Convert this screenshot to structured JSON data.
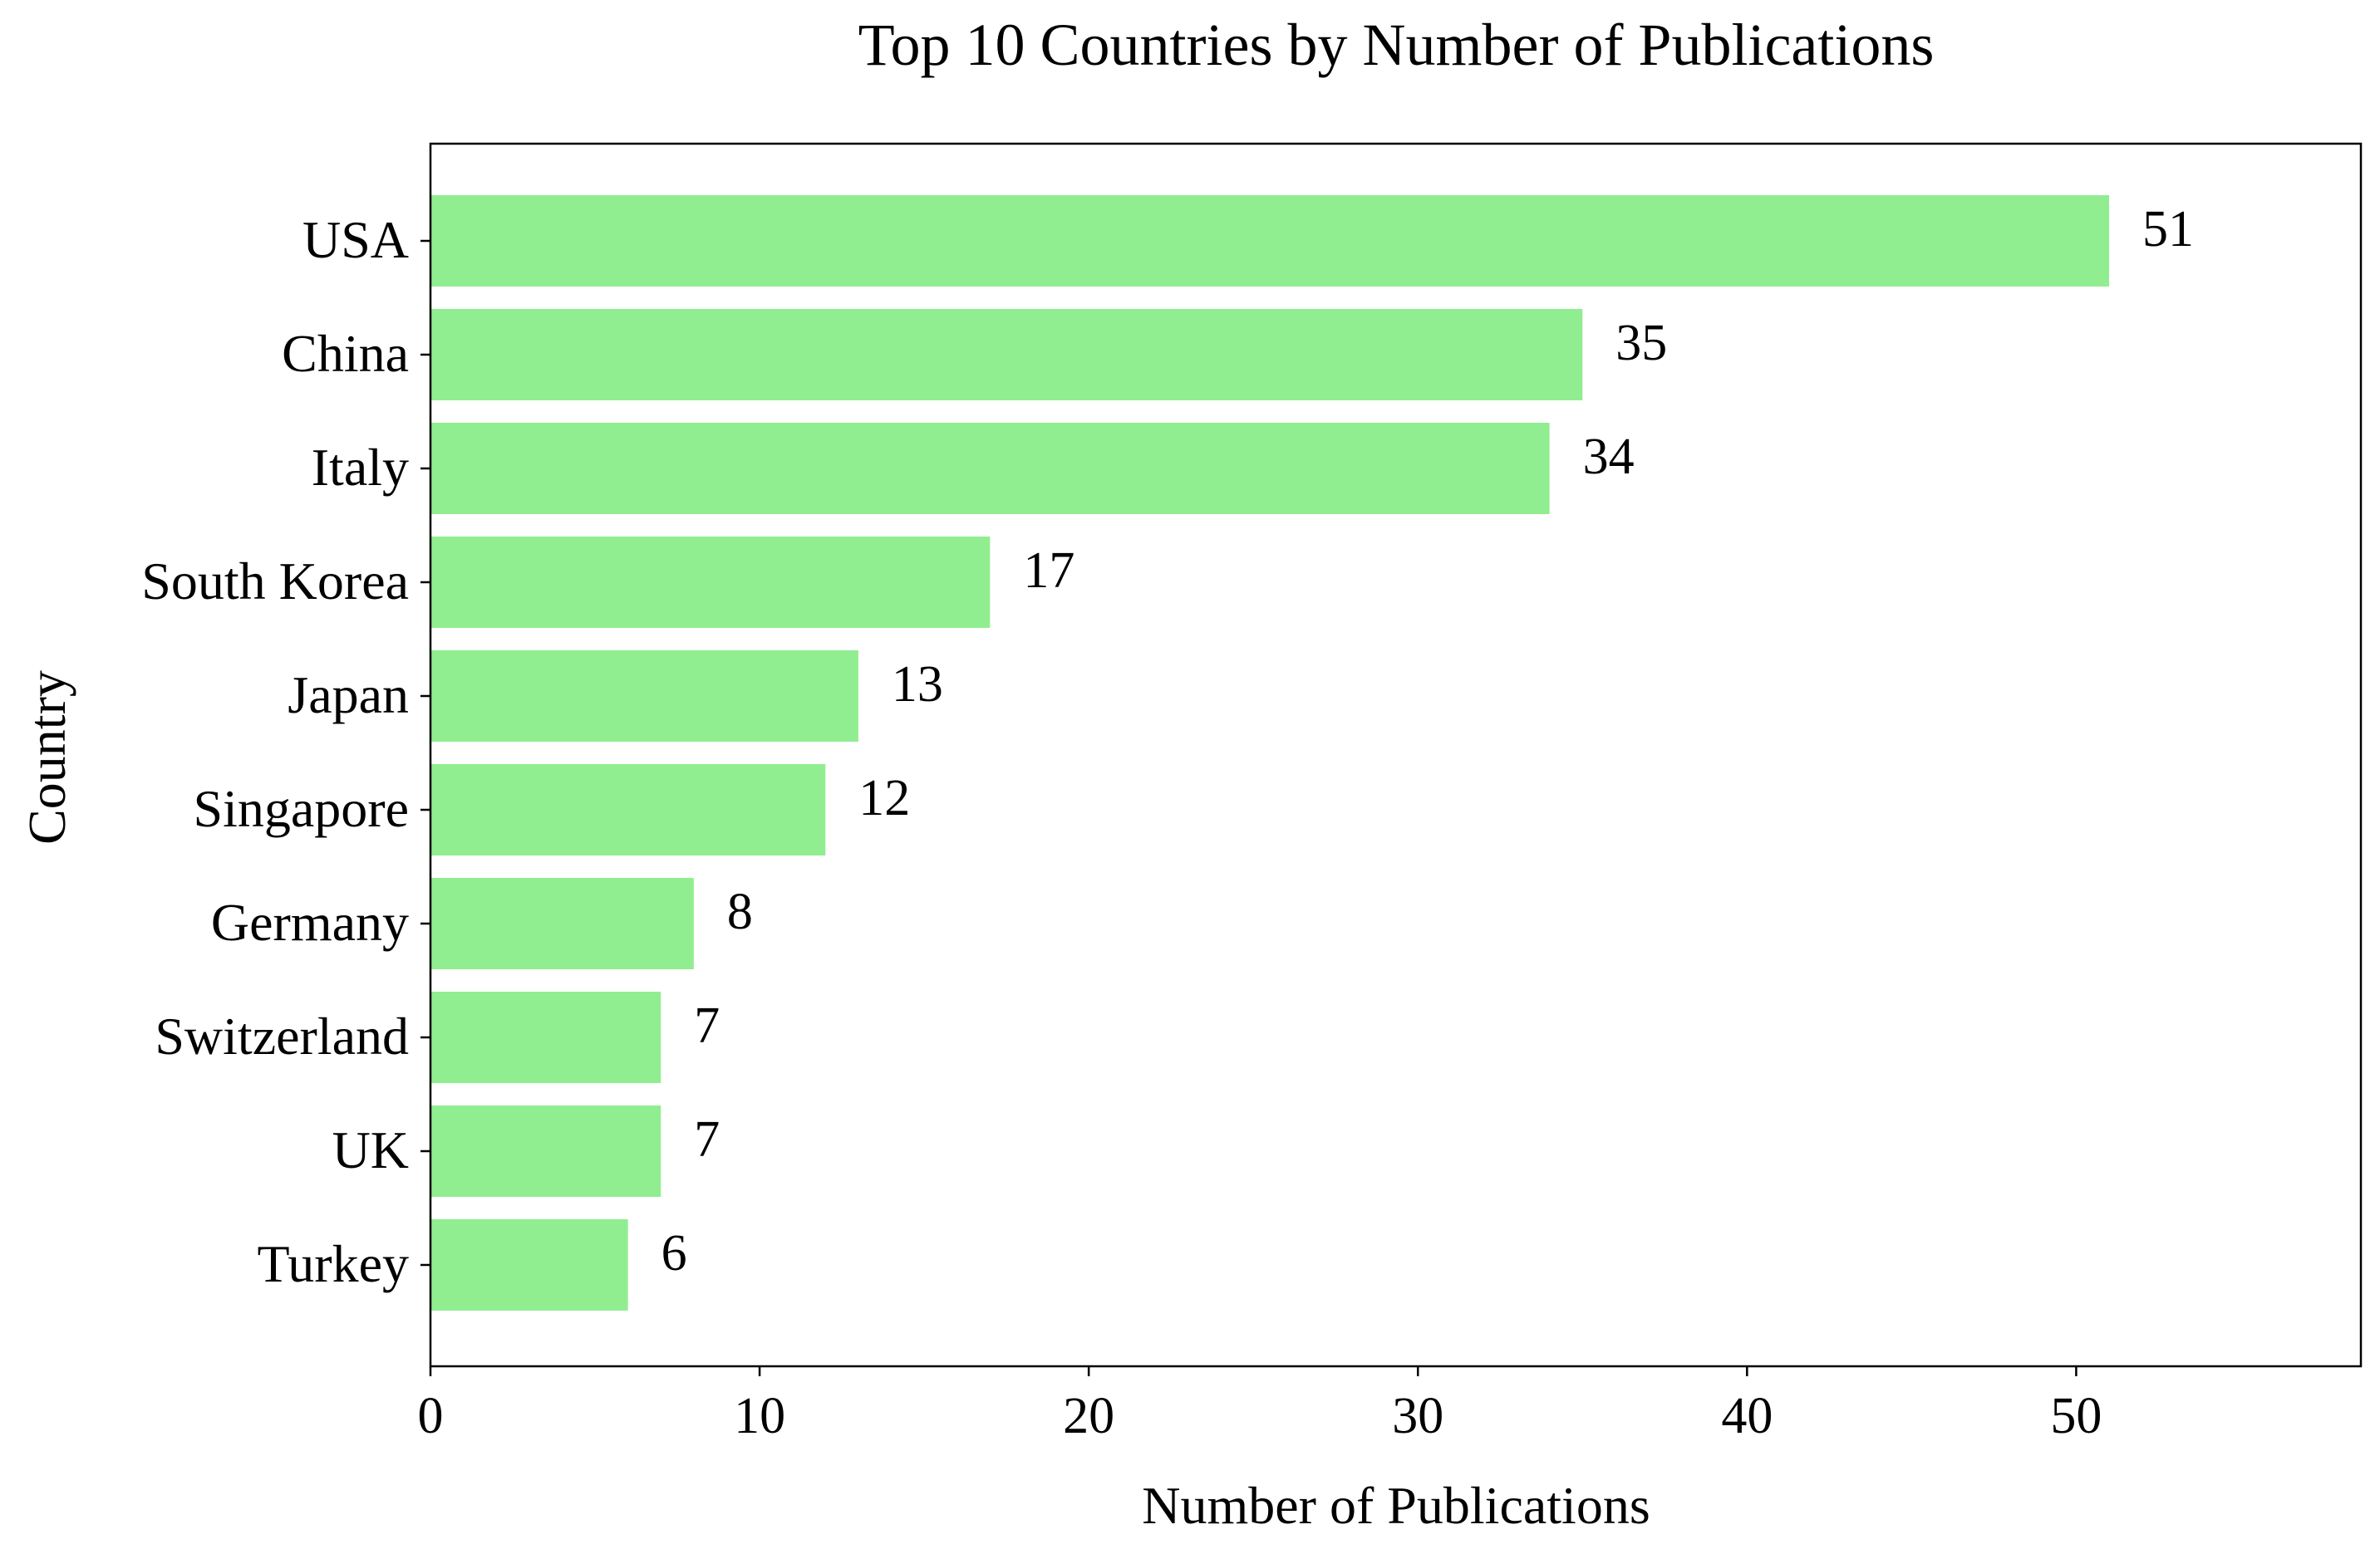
{
  "chart_data": {
    "type": "bar",
    "orientation": "horizontal",
    "title": "Top 10 Countries by Number of Publications",
    "xlabel": "Number of Publications",
    "ylabel": "Country",
    "categories": [
      "USA",
      "China",
      "Italy",
      "South Korea",
      "Japan",
      "Singapore",
      "Germany",
      "Switzerland",
      "UK",
      "Turkey"
    ],
    "values": [
      51,
      35,
      34,
      17,
      13,
      12,
      8,
      7,
      7,
      6
    ],
    "data_labels": [
      "51",
      "35",
      "34",
      "17",
      "13",
      "12",
      "8",
      "7",
      "7",
      "6"
    ],
    "xlim": [
      0,
      58.65
    ],
    "xticks": [
      0,
      10,
      20,
      30,
      40,
      50
    ],
    "xtick_labels": [
      "0",
      "10",
      "20",
      "30",
      "40",
      "50"
    ],
    "grid": false,
    "legend": "none",
    "bar_color": "#90ee90"
  }
}
